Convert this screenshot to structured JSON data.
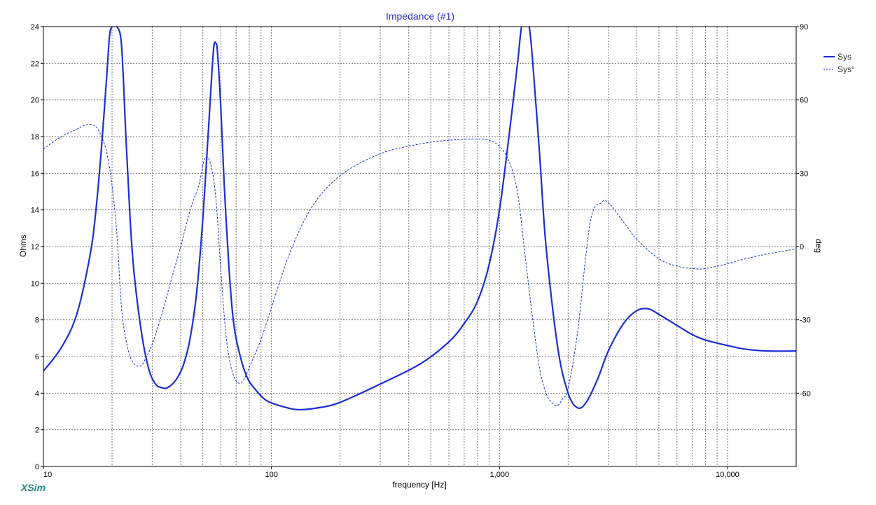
{
  "chart_data": {
    "type": "line",
    "title": "Impedance (#1)",
    "xlabel": "frequency [Hz]",
    "ylabel": "Ohms",
    "y2label": "deg",
    "x_scale": "log",
    "xlim": [
      10,
      20000
    ],
    "ylim": [
      0,
      24
    ],
    "y2lim": [
      -90,
      90
    ],
    "x_ticks": [
      {
        "value": 10,
        "label": "10"
      },
      {
        "value": 100,
        "label": "100"
      },
      {
        "value": 1000,
        "label": "1,000"
      },
      {
        "value": 10000,
        "label": "10,000"
      }
    ],
    "y_ticks": [
      "0",
      "2",
      "4",
      "6",
      "8",
      "10",
      "12",
      "14",
      "16",
      "18",
      "20",
      "22",
      "24"
    ],
    "y2_ticks": [
      "-60",
      "-30",
      "0",
      "30",
      "60",
      "90"
    ],
    "grid": true,
    "legend_position": "right",
    "series": [
      {
        "name": "Sys",
        "axis": "left",
        "style": "solid",
        "x": [
          10,
          12,
          14,
          16,
          17,
          18,
          19,
          19.5,
          20,
          20.5,
          21,
          22,
          23,
          24,
          25,
          27,
          29,
          31,
          33,
          35,
          38,
          41,
          44,
          47,
          50,
          53,
          55,
          56,
          57,
          58,
          60,
          62,
          65,
          68,
          72,
          78,
          85,
          95,
          110,
          130,
          160,
          200,
          300,
          450,
          600,
          700,
          800,
          900,
          1000,
          1100,
          1200,
          1250,
          1300,
          1350,
          1400,
          1500,
          1600,
          1800,
          2000,
          2200,
          2400,
          2700,
          3000,
          3500,
          4000,
          4500,
          5000,
          6000,
          7000,
          8000,
          10000,
          12000,
          15000,
          20000
        ],
        "y": [
          5.2,
          6.5,
          8.3,
          11.5,
          14.0,
          17.5,
          21.5,
          23.5,
          24.0,
          24.0,
          24.0,
          23.0,
          18.0,
          13.5,
          10.5,
          7.2,
          5.3,
          4.5,
          4.3,
          4.3,
          4.7,
          5.5,
          7.0,
          9.5,
          13.5,
          18.5,
          21.8,
          23.0,
          23.1,
          22.6,
          19.5,
          15.5,
          11.0,
          8.0,
          6.3,
          4.9,
          4.2,
          3.6,
          3.3,
          3.1,
          3.2,
          3.5,
          4.5,
          5.6,
          6.8,
          7.8,
          9.0,
          11.0,
          14.0,
          18.0,
          22.0,
          24.0,
          24.0,
          24.0,
          22.0,
          17.0,
          12.0,
          6.5,
          4.0,
          3.2,
          3.5,
          4.8,
          6.3,
          7.8,
          8.5,
          8.6,
          8.3,
          7.7,
          7.2,
          6.9,
          6.6,
          6.4,
          6.3,
          6.3
        ]
      },
      {
        "name": "Sys°",
        "axis": "right",
        "style": "dashed",
        "x": [
          10,
          12,
          14,
          15,
          16,
          17,
          18,
          19,
          20,
          21,
          22,
          23,
          24,
          25,
          26,
          27,
          28,
          30,
          33,
          36,
          40,
          44,
          48,
          51,
          54,
          57,
          60,
          63,
          66,
          70,
          75,
          82,
          90,
          100,
          120,
          150,
          200,
          300,
          450,
          600,
          800,
          900,
          1000,
          1100,
          1200,
          1300,
          1400,
          1500,
          1600,
          1700,
          1800,
          1900,
          2000,
          2200,
          2500,
          2800,
          3000,
          3500,
          4000,
          5000,
          6000,
          7000,
          8000,
          10000,
          12000,
          15000,
          20000
        ],
        "y": [
          40,
          45,
          48,
          49.5,
          50,
          49,
          45,
          38,
          25,
          5,
          -25,
          -38,
          -45,
          -48,
          -49,
          -48.5,
          -46,
          -40,
          -28,
          -15,
          0,
          15,
          25,
          36,
          34,
          20,
          -10,
          -35,
          -48,
          -55,
          -55,
          -47,
          -38,
          -25,
          -3,
          16,
          29,
          38,
          42,
          43.5,
          44,
          43.5,
          41,
          35,
          22,
          -5,
          -30,
          -50,
          -60,
          -64,
          -65,
          -62,
          -58,
          -35,
          10,
          18,
          18,
          10,
          3,
          -5,
          -8,
          -9,
          -9,
          -7,
          -5,
          -3,
          -1
        ]
      }
    ]
  },
  "branding": {
    "logo": "XSim"
  },
  "colors": {
    "axis_border": "#000000",
    "grid": "#7a7a7a",
    "series": "#1a2fd6",
    "title": "#2a2ad0",
    "brand": "#1f8a8a"
  }
}
